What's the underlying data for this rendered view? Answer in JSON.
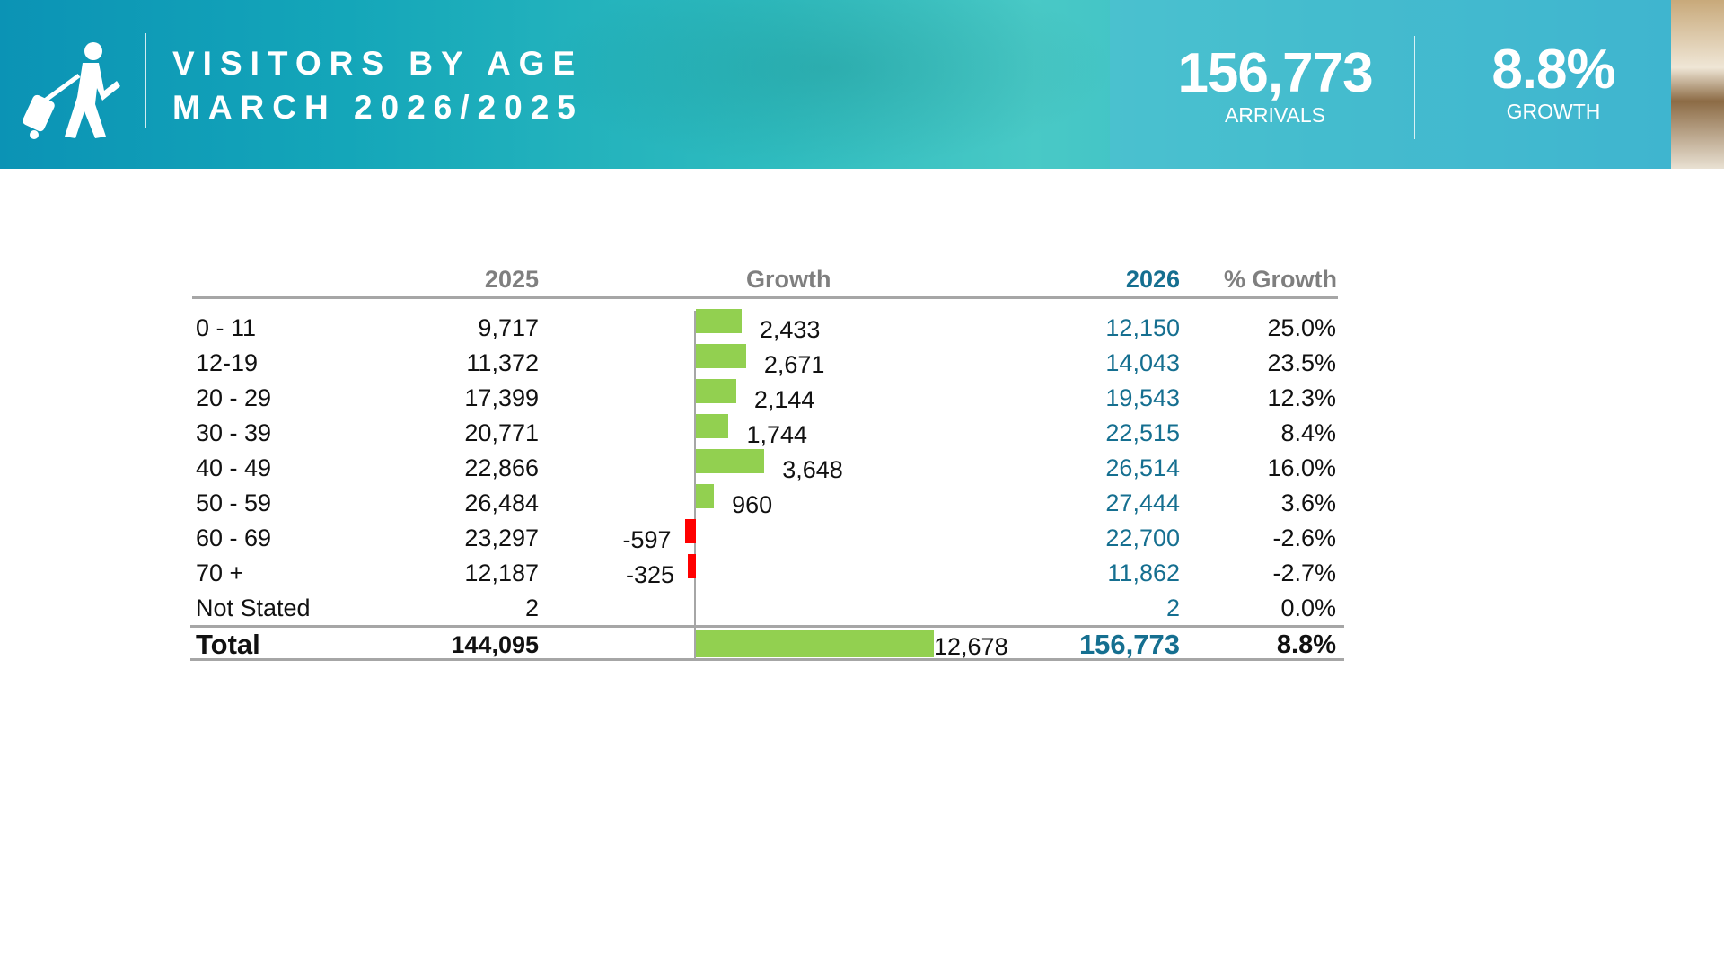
{
  "header": {
    "title_line1": "VISITORS BY AGE",
    "title_line2": "MARCH 2026/2025",
    "icon": "traveler-with-luggage-icon",
    "kpis": [
      {
        "value": "156,773",
        "label": "ARRIVALS"
      },
      {
        "value": "8.8%",
        "label": "GROWTH"
      }
    ]
  },
  "table": {
    "columns": {
      "c2025": "2025",
      "growth": "Growth",
      "c2026": "2026",
      "pct": "% Growth"
    },
    "colors": {
      "positive_bar": "#92d050",
      "negative_bar": "#ff0000",
      "accent": "#156f90"
    },
    "rows": [
      {
        "age": "0 - 11",
        "y2025": "9,717",
        "growth": 2433,
        "growth_label": "2,433",
        "y2026": "12,150",
        "pct": "25.0%"
      },
      {
        "age": "12-19",
        "y2025": "11,372",
        "growth": 2671,
        "growth_label": "2,671",
        "y2026": "14,043",
        "pct": "23.5%"
      },
      {
        "age": "20 - 29",
        "y2025": "17,399",
        "growth": 2144,
        "growth_label": "2,144",
        "y2026": "19,543",
        "pct": "12.3%"
      },
      {
        "age": "30 - 39",
        "y2025": "20,771",
        "growth": 1744,
        "growth_label": "1,744",
        "y2026": "22,515",
        "pct": "8.4%"
      },
      {
        "age": "40 - 49",
        "y2025": "22,866",
        "growth": 3648,
        "growth_label": "3,648",
        "y2026": "26,514",
        "pct": "16.0%"
      },
      {
        "age": "50 - 59",
        "y2025": "26,484",
        "growth": 960,
        "growth_label": "960",
        "y2026": "27,444",
        "pct": "3.6%"
      },
      {
        "age": "60 - 69",
        "y2025": "23,297",
        "growth": -597,
        "growth_label": "-597",
        "y2026": "22,700",
        "pct": "-2.6%"
      },
      {
        "age": "70 +",
        "y2025": "12,187",
        "growth": -325,
        "growth_label": "-325",
        "y2026": "11,862",
        "pct": "-2.7%"
      },
      {
        "age": "Not Stated",
        "y2025": "2",
        "growth": 0,
        "growth_label": "",
        "y2026": "2",
        "pct": "0.0%"
      }
    ],
    "total": {
      "label": "Total",
      "y2025": "144,095",
      "growth": 12678,
      "growth_label": "12,678",
      "y2026": "156,773",
      "pct": "8.8%"
    }
  }
}
